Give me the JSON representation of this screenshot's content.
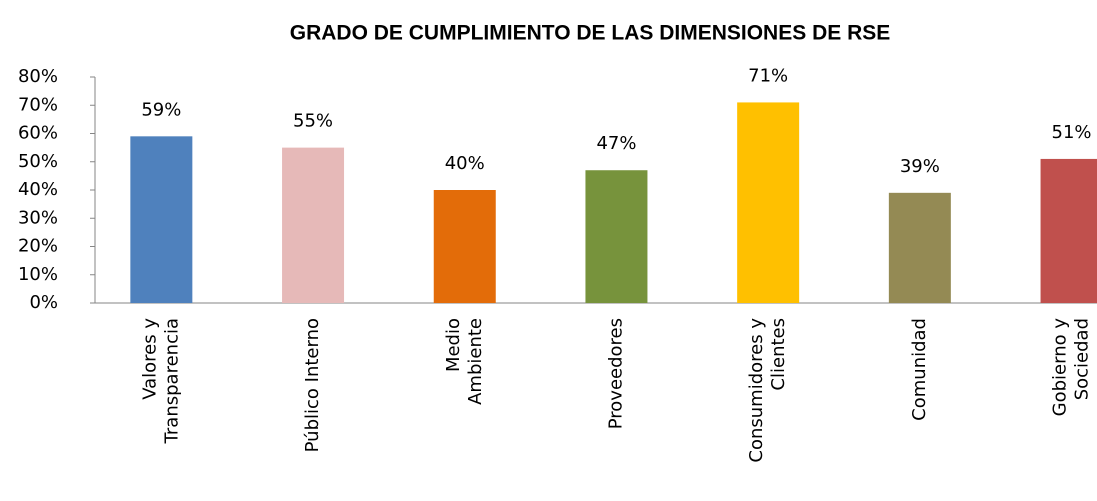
{
  "chart_data": {
    "type": "bar",
    "title": "GRADO DE CUMPLIMIENTO DE LAS DIMENSIONES DE RSE",
    "categories": [
      "Valores y Transparencia",
      "Público Interno",
      "Medio Ambiente",
      "Proveedores",
      "Consumidores y Clientes",
      "Comunidad",
      "Gobierno y Sociedad"
    ],
    "values": [
      59,
      55,
      40,
      47,
      71,
      39,
      51
    ],
    "value_labels": [
      "59%",
      "55%",
      "40%",
      "47%",
      "71%",
      "39%",
      "51%"
    ],
    "colors": [
      "#4f81bd",
      "#e6b9b8",
      "#e36c09",
      "#77933c",
      "#ffc000",
      "#948a54",
      "#c0504d"
    ],
    "ylim": [
      0,
      80
    ],
    "yticks": [
      {
        "value": 0,
        "label": "0%"
      },
      {
        "value": 10,
        "label": "10%"
      },
      {
        "value": 20,
        "label": "20%"
      },
      {
        "value": 30,
        "label": "30%"
      },
      {
        "value": 40,
        "label": "40%"
      },
      {
        "value": 50,
        "label": "50%"
      },
      {
        "value": 60,
        "label": "60%"
      },
      {
        "value": 70,
        "label": "70%"
      },
      {
        "value": 80,
        "label": "80%"
      }
    ],
    "grid": false
  }
}
